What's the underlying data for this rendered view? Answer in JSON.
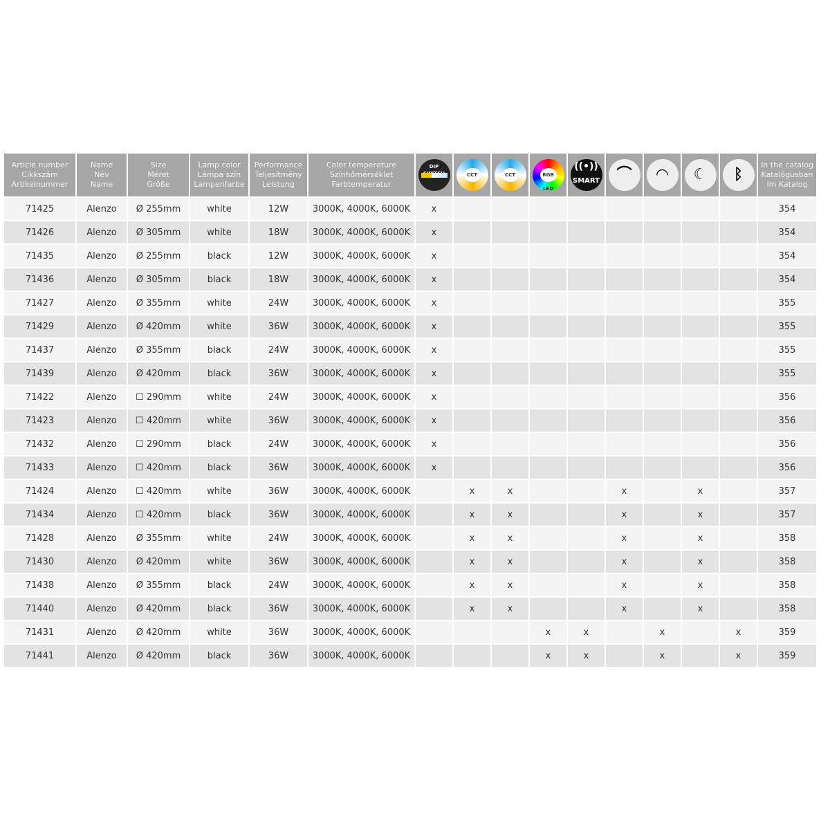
{
  "headers": [
    "Article number\nCikkszám\nArtikelnummer",
    "Name\nNév\nName",
    "Size\nMéret\nGröße",
    "Lamp color\nLámpa szín\nLampenfarbe",
    "Performance\nTeljesítmény\nLeistung",
    "Color temperature\nSzínhőmérséklet\nFarbtemperatur",
    "In the catalog\nKatalógusban\nIm Katalog"
  ],
  "icon_headers": [
    {
      "icon": "dip-switch-icon",
      "label": "DIP SWITCH"
    },
    {
      "icon": "cct-remote-icon",
      "label": "CCT"
    },
    {
      "icon": "cct-app-icon",
      "label": "CCT"
    },
    {
      "icon": "rgb-led-icon",
      "label": "RGB LED"
    },
    {
      "icon": "smart-wifi-icon",
      "label": "SMART"
    },
    {
      "icon": "remote-dimmable-icon",
      "label": ""
    },
    {
      "icon": "dimmable-icon",
      "label": ""
    },
    {
      "icon": "night-mode-icon",
      "label": ""
    },
    {
      "icon": "bluetooth-icon",
      "label": ""
    }
  ],
  "mark": "x",
  "rows": [
    {
      "article": "71425",
      "name": "Alenzo",
      "size": "Ø 255mm",
      "color": "white",
      "power": "12W",
      "temp": "3000K, 4000K, 6000K",
      "flags": [
        1,
        0,
        0,
        0,
        0,
        0,
        0,
        0,
        0
      ],
      "page": "354"
    },
    {
      "article": "71426",
      "name": "Alenzo",
      "size": "Ø 305mm",
      "color": "white",
      "power": "18W",
      "temp": "3000K, 4000K, 6000K",
      "flags": [
        1,
        0,
        0,
        0,
        0,
        0,
        0,
        0,
        0
      ],
      "page": "354"
    },
    {
      "article": "71435",
      "name": "Alenzo",
      "size": "Ø 255mm",
      "color": "black",
      "power": "12W",
      "temp": "3000K, 4000K, 6000K",
      "flags": [
        1,
        0,
        0,
        0,
        0,
        0,
        0,
        0,
        0
      ],
      "page": "354"
    },
    {
      "article": "71436",
      "name": "Alenzo",
      "size": "Ø 305mm",
      "color": "black",
      "power": "18W",
      "temp": "3000K, 4000K, 6000K",
      "flags": [
        1,
        0,
        0,
        0,
        0,
        0,
        0,
        0,
        0
      ],
      "page": "354"
    },
    {
      "article": "71427",
      "name": "Alenzo",
      "size": "Ø 355mm",
      "color": "white",
      "power": "24W",
      "temp": "3000K, 4000K, 6000K",
      "flags": [
        1,
        0,
        0,
        0,
        0,
        0,
        0,
        0,
        0
      ],
      "page": "355"
    },
    {
      "article": "71429",
      "name": "Alenzo",
      "size": "Ø 420mm",
      "color": "white",
      "power": "36W",
      "temp": "3000K, 4000K, 6000K",
      "flags": [
        1,
        0,
        0,
        0,
        0,
        0,
        0,
        0,
        0
      ],
      "page": "355"
    },
    {
      "article": "71437",
      "name": "Alenzo",
      "size": "Ø 355mm",
      "color": "black",
      "power": "24W",
      "temp": "3000K, 4000K, 6000K",
      "flags": [
        1,
        0,
        0,
        0,
        0,
        0,
        0,
        0,
        0
      ],
      "page": "355"
    },
    {
      "article": "71439",
      "name": "Alenzo",
      "size": "Ø 420mm",
      "color": "black",
      "power": "36W",
      "temp": "3000K, 4000K, 6000K",
      "flags": [
        1,
        0,
        0,
        0,
        0,
        0,
        0,
        0,
        0
      ],
      "page": "355"
    },
    {
      "article": "71422",
      "name": "Alenzo",
      "size": "☐ 290mm",
      "color": "white",
      "power": "24W",
      "temp": "3000K, 4000K, 6000K",
      "flags": [
        1,
        0,
        0,
        0,
        0,
        0,
        0,
        0,
        0
      ],
      "page": "356"
    },
    {
      "article": "71423",
      "name": "Alenzo",
      "size": "☐ 420mm",
      "color": "white",
      "power": "36W",
      "temp": "3000K, 4000K, 6000K",
      "flags": [
        1,
        0,
        0,
        0,
        0,
        0,
        0,
        0,
        0
      ],
      "page": "356"
    },
    {
      "article": "71432",
      "name": "Alenzo",
      "size": "☐ 290mm",
      "color": "black",
      "power": "24W",
      "temp": "3000K, 4000K, 6000K",
      "flags": [
        1,
        0,
        0,
        0,
        0,
        0,
        0,
        0,
        0
      ],
      "page": "356"
    },
    {
      "article": "71433",
      "name": "Alenzo",
      "size": "☐ 420mm",
      "color": "black",
      "power": "36W",
      "temp": "3000K, 4000K, 6000K",
      "flags": [
        1,
        0,
        0,
        0,
        0,
        0,
        0,
        0,
        0
      ],
      "page": "356"
    },
    {
      "article": "71424",
      "name": "Alenzo",
      "size": "☐ 420mm",
      "color": "white",
      "power": "36W",
      "temp": "3000K, 4000K, 6000K",
      "flags": [
        0,
        1,
        1,
        0,
        0,
        1,
        0,
        1,
        0
      ],
      "page": "357"
    },
    {
      "article": "71434",
      "name": "Alenzo",
      "size": "☐ 420mm",
      "color": "black",
      "power": "36W",
      "temp": "3000K, 4000K, 6000K",
      "flags": [
        0,
        1,
        1,
        0,
        0,
        1,
        0,
        1,
        0
      ],
      "page": "357"
    },
    {
      "article": "71428",
      "name": "Alenzo",
      "size": "Ø 355mm",
      "color": "white",
      "power": "24W",
      "temp": "3000K, 4000K, 6000K",
      "flags": [
        0,
        1,
        1,
        0,
        0,
        1,
        0,
        1,
        0
      ],
      "page": "358"
    },
    {
      "article": "71430",
      "name": "Alenzo",
      "size": "Ø 420mm",
      "color": "white",
      "power": "36W",
      "temp": "3000K, 4000K, 6000K",
      "flags": [
        0,
        1,
        1,
        0,
        0,
        1,
        0,
        1,
        0
      ],
      "page": "358"
    },
    {
      "article": "71438",
      "name": "Alenzo",
      "size": "Ø 355mm",
      "color": "black",
      "power": "24W",
      "temp": "3000K, 4000K, 6000K",
      "flags": [
        0,
        1,
        1,
        0,
        0,
        1,
        0,
        1,
        0
      ],
      "page": "358"
    },
    {
      "article": "71440",
      "name": "Alenzo",
      "size": "Ø 420mm",
      "color": "black",
      "power": "36W",
      "temp": "3000K, 4000K, 6000K",
      "flags": [
        0,
        1,
        1,
        0,
        0,
        1,
        0,
        1,
        0
      ],
      "page": "358"
    },
    {
      "article": "71431",
      "name": "Alenzo",
      "size": "Ø 420mm",
      "color": "white",
      "power": "36W",
      "temp": "3000K, 4000K, 6000K",
      "flags": [
        0,
        0,
        0,
        1,
        1,
        0,
        1,
        0,
        1
      ],
      "page": "359"
    },
    {
      "article": "71441",
      "name": "Alenzo",
      "size": "Ø 420mm",
      "color": "black",
      "power": "36W",
      "temp": "3000K, 4000K, 6000K",
      "flags": [
        0,
        0,
        0,
        1,
        1,
        0,
        1,
        0,
        1
      ],
      "page": "359"
    }
  ],
  "colors": {
    "header_bg": "#a6a6a6",
    "row_light": "#f4f4f4",
    "row_dark": "#e3e3e3"
  }
}
